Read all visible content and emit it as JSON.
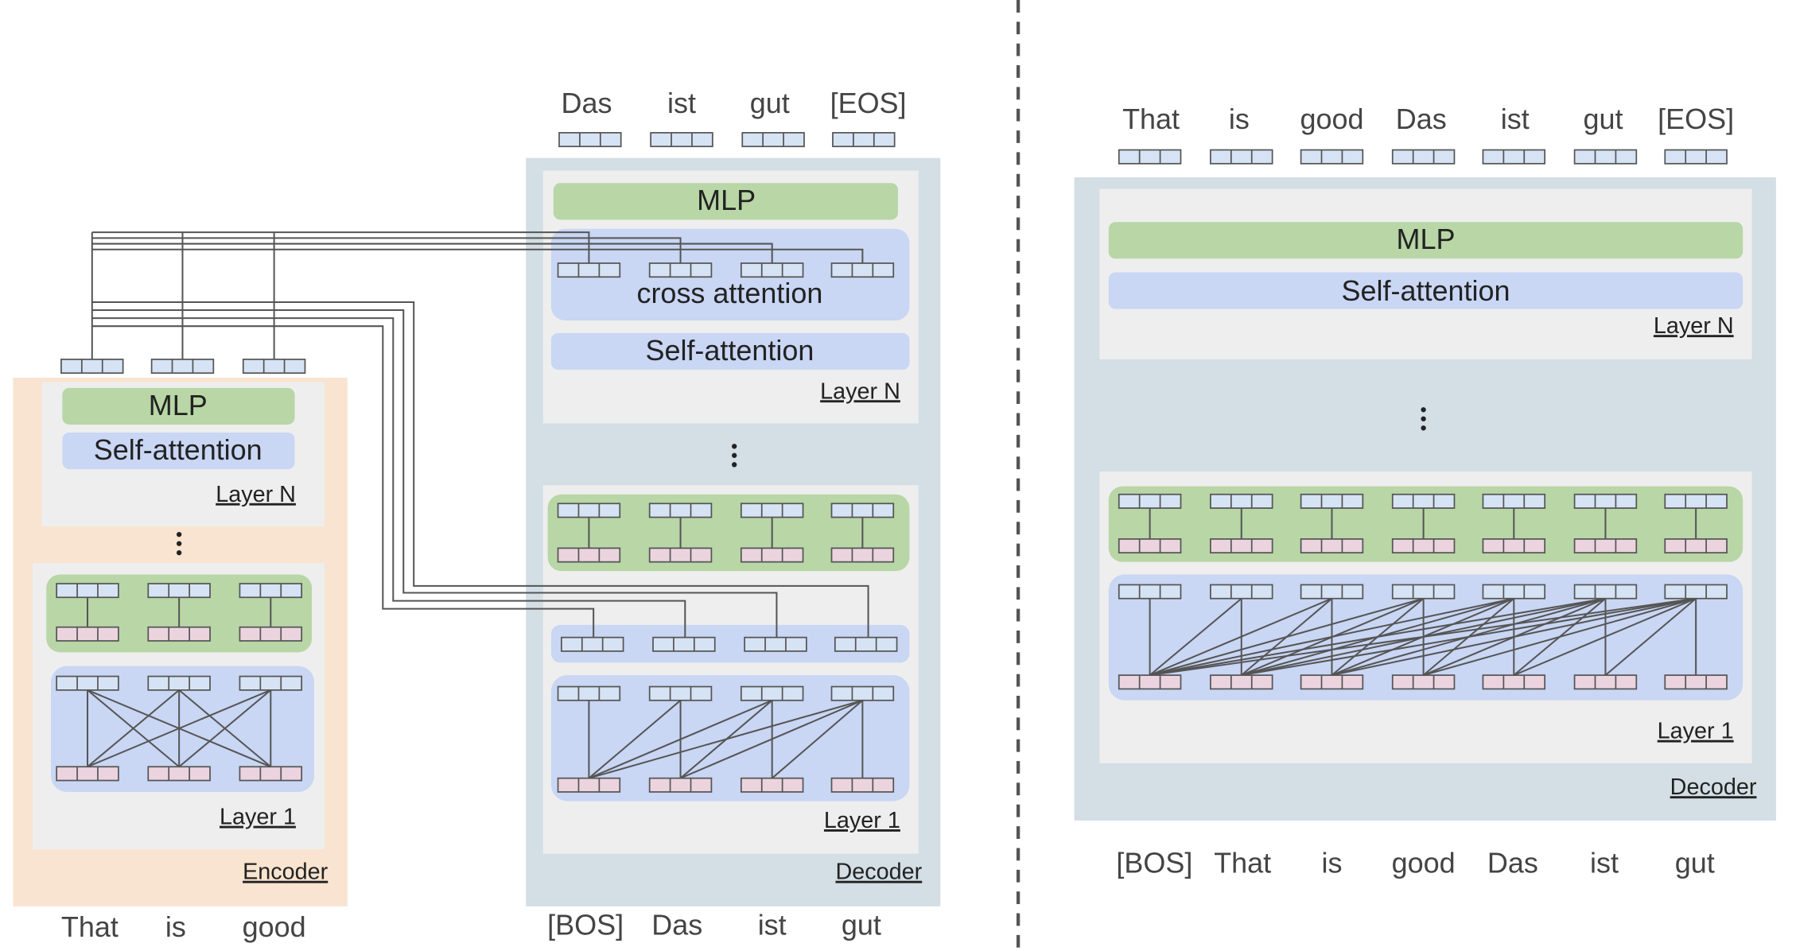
{
  "encoder_decoder": {
    "encoder": {
      "inputs": [
        "That",
        "is",
        "good"
      ],
      "mlp": "MLP",
      "self_attention": "Self-attention",
      "layer_n": "Layer N",
      "layer_1": "Layer 1",
      "label": "Encoder"
    },
    "decoder": {
      "inputs": [
        "[BOS]",
        "Das",
        "ist",
        "gut"
      ],
      "outputs": [
        "Das",
        "ist",
        "gut",
        "[EOS]"
      ],
      "mlp": "MLP",
      "cross_attention": "cross attention",
      "self_attention": "Self-attention",
      "layer_n": "Layer N",
      "layer_1": "Layer 1",
      "label": "Decoder"
    }
  },
  "decoder_only": {
    "inputs": [
      "[BOS]",
      "That",
      "is",
      "good",
      "Das",
      "ist",
      "gut"
    ],
    "outputs": [
      "That",
      "is",
      "good",
      "Das",
      "ist",
      "gut",
      "[EOS]"
    ],
    "mlp": "MLP",
    "self_attention": "Self-attention",
    "layer_n": "Layer N",
    "layer_1": "Layer 1",
    "label": "Decoder"
  }
}
